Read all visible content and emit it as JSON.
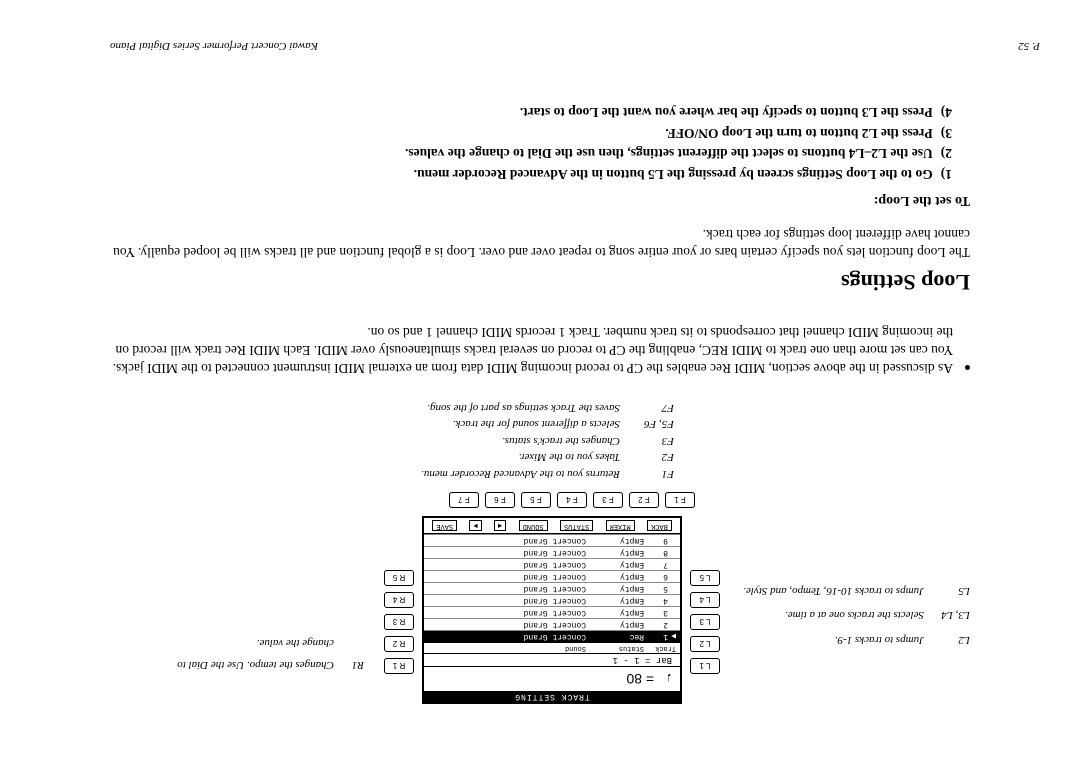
{
  "footer": {
    "page": "P. 52",
    "title": "Kawai Concert Performer Series Digital Piano"
  },
  "left_labels": {
    "L2": "Jumps to tracks 1-9.",
    "L3L4": "Selects the tracks one at a time.",
    "L5": "Jumps to tracks 10-16, Tempo, and Style."
  },
  "right_label": {
    "R1": "Changes the tempo.  Use the Dial to change the value."
  },
  "lcd": {
    "header": "TRACK SETTING",
    "tempo_line": "♩ = 80",
    "bar_line": "Bar =  1 - 1",
    "col_headers": [
      "Track",
      "Status",
      "Sound"
    ],
    "tracks": [
      {
        "n": "1",
        "status": "Rec",
        "sound": "Concert Grand",
        "sel": true
      },
      {
        "n": "2",
        "status": "Empty",
        "sound": "Concert Grand",
        "sel": false
      },
      {
        "n": "3",
        "status": "Empty",
        "sound": "Concert Grand",
        "sel": false
      },
      {
        "n": "4",
        "status": "Empty",
        "sound": "Concert Grand",
        "sel": false
      },
      {
        "n": "5",
        "status": "Empty",
        "sound": "Concert Grand",
        "sel": false
      },
      {
        "n": "6",
        "status": "Empty",
        "sound": "Concert Grand",
        "sel": false
      },
      {
        "n": "7",
        "status": "Empty",
        "sound": "Concert Grand",
        "sel": false
      },
      {
        "n": "8",
        "status": "Empty",
        "sound": "Concert Grand",
        "sel": false
      },
      {
        "n": "9",
        "status": "Empty",
        "sound": "Concert Grand",
        "sel": false
      }
    ],
    "footer_buttons": [
      "BACK",
      "MIXER",
      "STATUS",
      "SOUND",
      "◀",
      "▶",
      "SAVE"
    ]
  },
  "btn_left": [
    "L 1",
    "L 2",
    "L 3",
    "L 4",
    "L 5"
  ],
  "btn_right": [
    "R 1",
    "R 2",
    "R 3",
    "R 4",
    "R 5"
  ],
  "btn_f": [
    "F 1",
    "F 2",
    "F 3",
    "F 4",
    "F 5",
    "F 6",
    "F 7"
  ],
  "f_desc": {
    "F1": "Returns you to the Advanced Recorder menu.",
    "F2": "Takes you to the Mixer.",
    "F3": "Changes the track's status.",
    "F5F6": "Selects a different sound for the track.",
    "F7": "Saves the Track settings as part of the song."
  },
  "bullet_text": "As discussed in the above section, MIDI Rec enables the CP to record incoming MIDI data from an external MIDI instrument connected to the MIDI jacks.  You can set more than one track to MIDI REC, enabling the CP to record on several tracks simultaneously over MIDI.  Each MIDI Rec track will record on the incoming MIDI channel that corresponds to its track number.  Track 1 records MIDI channel 1 and so on.",
  "loop": {
    "heading": "Loop Settings",
    "desc": "The Loop function lets you specify certain bars or your entire song to repeat over and over.  Loop is a global function and all tracks will be looped equally.  You cannot have different loop settings for each track.",
    "proc_title": "To set the Loop:",
    "steps": [
      "Go to the Loop Settings screen by pressing the L5 button in the Advanced Recorder menu.",
      "Use the L2–L4 buttons to select the different settings, then use the Dial to change the values.",
      "Press the L2 button to turn the Loop ON/OFF.",
      "Press the L3 button to specify the bar where you want the Loop to start."
    ]
  }
}
